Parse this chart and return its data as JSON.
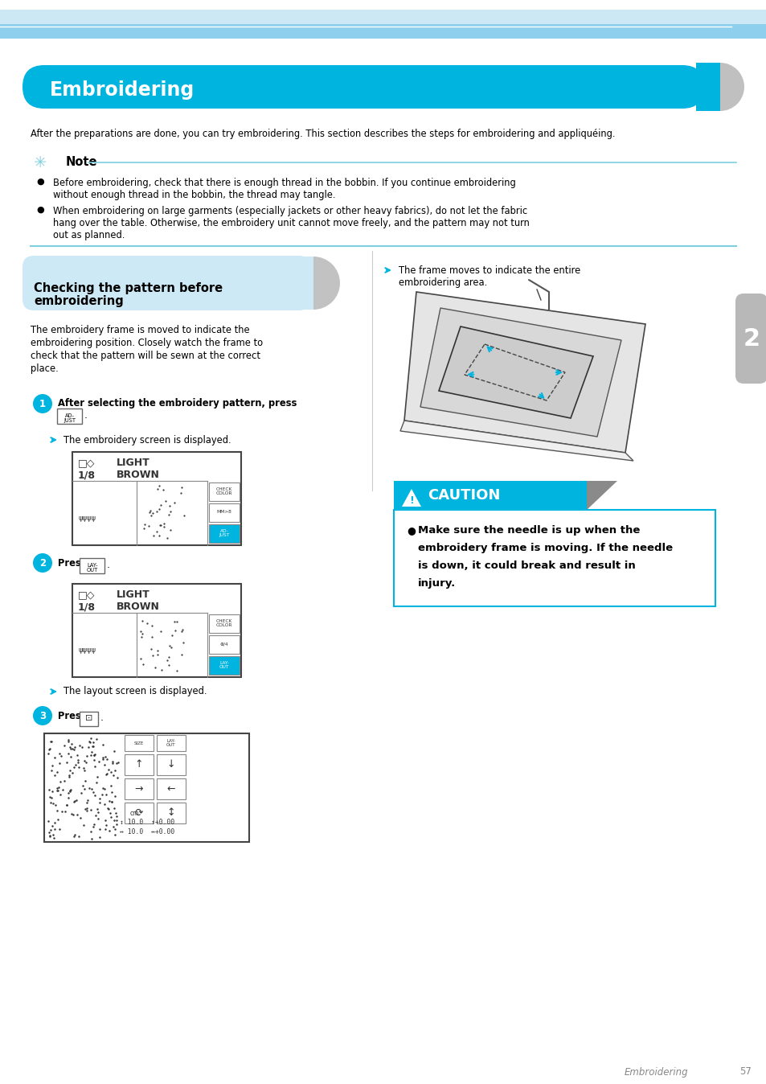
{
  "page_bg": "#ffffff",
  "header_bg": "#00b4e0",
  "header_text": "Embroidering",
  "header_text_color": "#ffffff",
  "subheader_bg": "#cce9f5",
  "caution_bg": "#00b4e0",
  "caution_text": "CAUTION",
  "caution_box_border": "#00b4e0",
  "note_line_color": "#7ecfdf",
  "section_divider_color": "#7ecfdf",
  "step_circle_color": "#00b4e0",
  "arrow_color": "#00b4e0",
  "page_number": "57",
  "page_label": "Embroidering",
  "intro_text": "After the preparations are done, you can try embroidering. This section describes the steps for embroidering and appliquéing.",
  "note_bullet1_line1": "Before embroidering, check that there is enough thread in the bobbin. If you continue embroidering",
  "note_bullet1_line2": "without enough thread in the bobbin, the thread may tangle.",
  "note_bullet2_line1": "When embroidering on large garments (especially jackets or other heavy fabrics), do not let the fabric",
  "note_bullet2_line2": "hang over the table. Otherwise, the embroidery unit cannot move freely, and the pattern may not turn",
  "note_bullet2_line3": "out as planned.",
  "subheader_line1": "Checking the pattern before",
  "subheader_line2": "embroidering",
  "desc_lines": [
    "The embroidery frame is moved to indicate the",
    "embroidering position. Closely watch the frame to",
    "check that the pattern will be sewn at the correct",
    "place."
  ],
  "step1_text": "After selecting the embroidery pattern, press",
  "step1_sub": "The embroidery screen is displayed.",
  "step2_text": "Press",
  "step2_sub": "The layout screen is displayed.",
  "step3_text": "Press",
  "right_arrow_text1": "The frame moves to indicate the entire",
  "right_arrow_text2": "embroidering area.",
  "caution_lines": [
    "Make sure the needle is up when the",
    "embroidery frame is moving. If the needle",
    "is down, it could break and result in",
    "injury."
  ]
}
